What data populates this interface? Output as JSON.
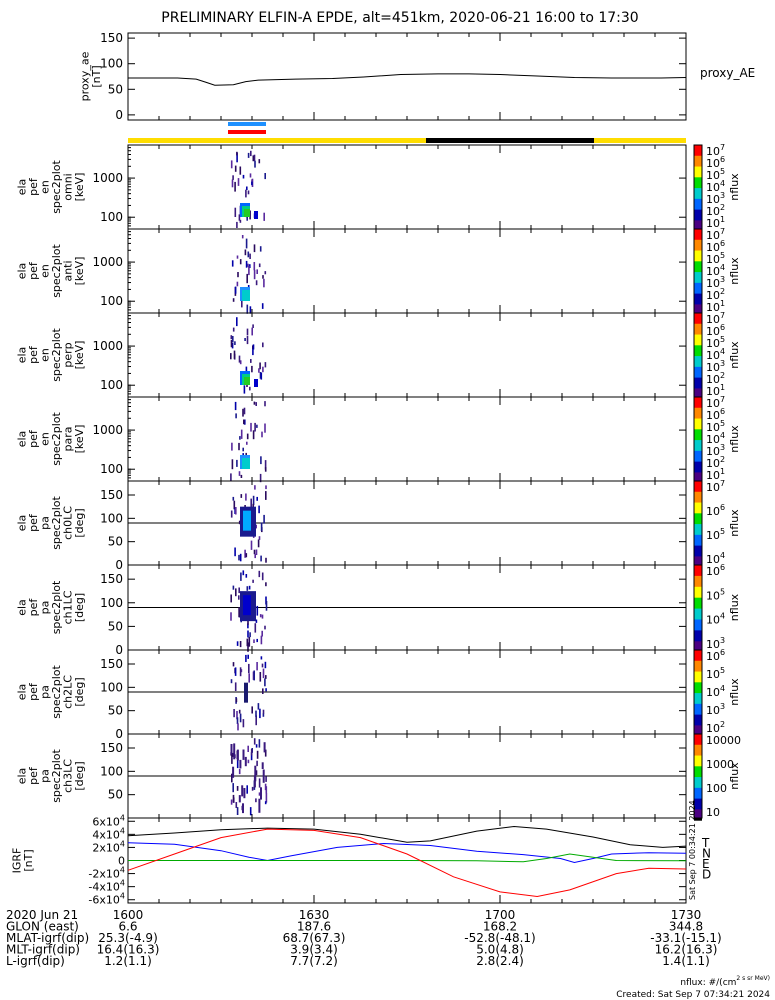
{
  "title": "PRELIMINARY ELFIN-A EPDE, alt=451km, 2020-06-21 16:00 to 17:30",
  "chart_data": [
    {
      "type": "line",
      "panel": "proxy_ae",
      "ylabel": [
        "proxy_ae",
        "[nT]"
      ],
      "legend": "proxy_AE",
      "ylim": [
        -10,
        160
      ],
      "yticks": [
        "0",
        "50",
        "100",
        "150"
      ],
      "series": [
        {
          "name": "proxy_AE",
          "color": "#000000",
          "points": [
            [
              0,
              72
            ],
            [
              4,
              72
            ],
            [
              8,
              72
            ],
            [
              11,
              70
            ],
            [
              12.5,
              64
            ],
            [
              14,
              58
            ],
            [
              17,
              59
            ],
            [
              19,
              65
            ],
            [
              21,
              68
            ],
            [
              27,
              70
            ],
            [
              33,
              71
            ],
            [
              38,
              74
            ],
            [
              44,
              79
            ],
            [
              50,
              80
            ],
            [
              55,
              80
            ],
            [
              60,
              79
            ],
            [
              66,
              76
            ],
            [
              72,
              73
            ],
            [
              78,
              72
            ],
            [
              86,
              72
            ],
            [
              90,
              73
            ]
          ]
        }
      ]
    },
    {
      "type": "heatmap",
      "panel": "omni",
      "ylabel": [
        "ela",
        "pef",
        "en",
        "spec2plot",
        "omni",
        "[keV]"
      ],
      "ylim_log": [
        50,
        7000
      ],
      "yticks": [
        "100",
        "1000"
      ],
      "colorbar": {
        "label": "nflux",
        "ticks": [
          "10^7",
          "10^6",
          "10^5",
          "10^4",
          "10^3",
          "10^2",
          "10^1"
        ]
      }
    },
    {
      "type": "heatmap",
      "panel": "anti",
      "ylabel": [
        "ela",
        "pef",
        "en",
        "spec2plot",
        "anti",
        "[keV]"
      ],
      "ylim_log": [
        50,
        7000
      ],
      "yticks": [
        "100",
        "1000"
      ],
      "colorbar": {
        "label": "nflux",
        "ticks": [
          "10^7",
          "10^6",
          "10^5",
          "10^4",
          "10^3",
          "10^2",
          "10^1"
        ]
      }
    },
    {
      "type": "heatmap",
      "panel": "perp",
      "ylabel": [
        "ela",
        "pef",
        "en",
        "spec2plot",
        "perp",
        "[keV]"
      ],
      "ylim_log": [
        50,
        7000
      ],
      "yticks": [
        "100",
        "1000"
      ],
      "colorbar": {
        "label": "nflux",
        "ticks": [
          "10^7",
          "10^6",
          "10^5",
          "10^4",
          "10^3",
          "10^2",
          "10^1"
        ]
      }
    },
    {
      "type": "heatmap",
      "panel": "para",
      "ylabel": [
        "ela",
        "pef",
        "en",
        "spec2plot",
        "para",
        "[keV]"
      ],
      "ylim_log": [
        50,
        7000
      ],
      "yticks": [
        "100",
        "1000"
      ],
      "colorbar": {
        "label": "nflux",
        "ticks": [
          "10^7",
          "10^6",
          "10^5",
          "10^4",
          "10^3",
          "10^2",
          "10^1"
        ]
      }
    },
    {
      "type": "heatmap",
      "panel": "ch0LC",
      "ylabel": [
        "ela",
        "pef",
        "pa",
        "spec2plot",
        "ch0LC",
        "[deg]"
      ],
      "ylim": [
        0,
        180
      ],
      "yticks": [
        "0",
        "50",
        "100",
        "150"
      ],
      "colorbar": {
        "label": "nflux",
        "ticks": [
          "10^7",
          "10^6",
          "10^5",
          "10^4"
        ]
      }
    },
    {
      "type": "heatmap",
      "panel": "ch1LC",
      "ylabel": [
        "ela",
        "pef",
        "pa",
        "spec2plot",
        "ch1LC",
        "[deg]"
      ],
      "ylim": [
        0,
        180
      ],
      "yticks": [
        "0",
        "50",
        "100",
        "150"
      ],
      "colorbar": {
        "label": "nflux",
        "ticks": [
          "10^6",
          "10^5",
          "10^4",
          "10^3"
        ]
      }
    },
    {
      "type": "heatmap",
      "panel": "ch2LC",
      "ylabel": [
        "ela",
        "pef",
        "pa",
        "spec2plot",
        "ch2LC",
        "[deg]"
      ],
      "ylim": [
        0,
        180
      ],
      "yticks": [
        "0",
        "50",
        "100",
        "150"
      ],
      "colorbar": {
        "label": "nflux",
        "ticks": [
          "10^6",
          "10^5",
          "10^4",
          "10^3",
          "10^2"
        ]
      }
    },
    {
      "type": "heatmap",
      "panel": "ch3LC",
      "ylabel": [
        "ela",
        "pef",
        "pa",
        "spec2plot",
        "ch3LC",
        "[deg]"
      ],
      "ylim": [
        0,
        180
      ],
      "yticks": [
        "50",
        "100",
        "150"
      ],
      "colorbar": {
        "label": "nflux",
        "ticks": [
          "10000",
          "1000",
          "100",
          "10"
        ]
      }
    },
    {
      "type": "line",
      "panel": "IGRF",
      "ylabel": [
        "IGRF",
        "[nT]"
      ],
      "ylim": [
        -65000,
        65000
      ],
      "yticks": [
        "6x10^4",
        "4x10^4",
        "2x10^4",
        "0",
        "-2x10^4",
        "-4x10^4",
        "-6x10^4"
      ],
      "legend": [
        "T",
        "N",
        "E",
        "D"
      ],
      "series": [
        {
          "name": "T",
          "color": "#000000",
          "points": [
            [
              0,
              38000
            ],
            [
              10,
              42000
            ],
            [
              20,
              47000
            ],
            [
              30,
              49500
            ],
            [
              40,
              48000
            ],
            [
              50,
              40000
            ],
            [
              60,
              28000
            ],
            [
              65,
              30000
            ],
            [
              75,
              45000
            ],
            [
              83,
              52000
            ],
            [
              90,
              48000
            ],
            [
              100,
              36000
            ],
            [
              108,
              24000
            ],
            [
              115,
              20000
            ],
            [
              120,
              22000
            ]
          ]
        },
        {
          "name": "N",
          "color": "#0000ff",
          "points": [
            [
              0,
              27000
            ],
            [
              10,
              25000
            ],
            [
              20,
              15000
            ],
            [
              26,
              5000
            ],
            [
              30,
              0
            ],
            [
              35,
              7000
            ],
            [
              45,
              20000
            ],
            [
              55,
              26000
            ],
            [
              65,
              23000
            ],
            [
              75,
              14000
            ],
            [
              85,
              9000
            ],
            [
              93,
              3000
            ],
            [
              96,
              -3000
            ],
            [
              100,
              3000
            ],
            [
              104,
              10000
            ],
            [
              112,
              12000
            ],
            [
              120,
              11000
            ]
          ]
        },
        {
          "name": "E",
          "color": "#00aa00",
          "points": [
            [
              0,
              0
            ],
            [
              20,
              0
            ],
            [
              40,
              0
            ],
            [
              60,
              0
            ],
            [
              75,
              -500
            ],
            [
              85,
              -2000
            ],
            [
              90,
              3000
            ],
            [
              95,
              10000
            ],
            [
              100,
              5000
            ],
            [
              105,
              0
            ],
            [
              120,
              -500
            ]
          ]
        },
        {
          "name": "D",
          "color": "#ff0000",
          "points": [
            [
              0,
              -15000
            ],
            [
              10,
              10000
            ],
            [
              20,
              35000
            ],
            [
              30,
              48000
            ],
            [
              40,
              46000
            ],
            [
              50,
              35000
            ],
            [
              60,
              10000
            ],
            [
              70,
              -25000
            ],
            [
              80,
              -48000
            ],
            [
              88,
              -55000
            ],
            [
              95,
              -45000
            ],
            [
              105,
              -20000
            ],
            [
              112,
              -12000
            ],
            [
              120,
              -13000
            ]
          ]
        }
      ]
    }
  ],
  "side_stamp": "Sat Sep  7 00:34:21 2024",
  "footer_rows": [
    {
      "label": "2020 Jun 21",
      "values": [
        "1600",
        "1630",
        "1700",
        "1730"
      ]
    },
    {
      "label": "GLON (east)",
      "values": [
        "6.6",
        "187.6",
        "168.2",
        "344.8"
      ]
    },
    {
      "label": "MLAT-igrf(dip)",
      "values": [
        "25.3(-4.9)",
        "68.7(67.3)",
        "-52.8(-48.1)",
        "-33.1(-15.1)"
      ]
    },
    {
      "label": "MLT-igrf(dip)",
      "values": [
        "16.4(16.3)",
        "3.9(3.4)",
        "5.0(4.8)",
        "16.2(16.3)"
      ]
    },
    {
      "label": "L-igrf(dip)",
      "values": [
        "1.2(1.1)",
        "7.7(7.2)",
        "2.8(2.4)",
        "1.4(1.1)"
      ]
    }
  ],
  "units_note": "nflux: #/(cm^2 s sr MeV)",
  "created_note": "Created: Sat Sep  7 07:34:21 2024"
}
